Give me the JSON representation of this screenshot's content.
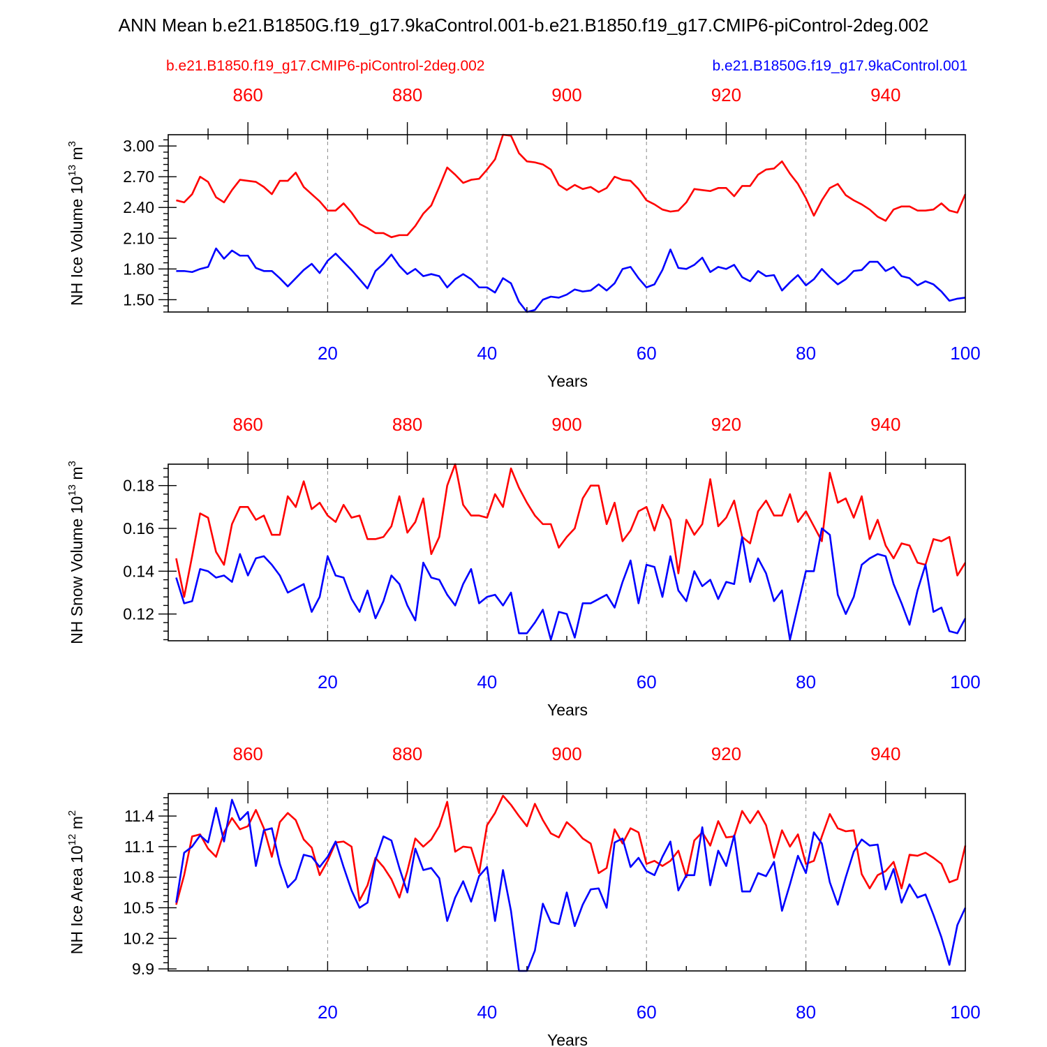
{
  "title": "ANN Mean b.e21.B1850G.f19_g17.9kaControl.001-b.e21.B1850.f19_g17.CMIP6-piControl-2deg.002",
  "legend": [
    {
      "label": "b.e21.B1850.f19_g17.CMIP6-piControl-2deg.002",
      "color": "#ff0000",
      "position": "top-left"
    },
    {
      "label": "b.e21.B1850G.f19_g17.9kaControl.001",
      "color": "#0000ff",
      "position": "top-right"
    }
  ],
  "colors": {
    "red_series": "#ff0000",
    "blue_series": "#0000ff",
    "axis": "#000000",
    "grid": "#888888"
  },
  "chart_data": [
    {
      "type": "line",
      "title": "",
      "xlabel": "Years",
      "ylabel": "NH Ice Volume 10",
      "ylabel_exp": "13",
      "ylabel_unit": " m",
      "ylabel_unit_exp": "3",
      "xlim": [
        0,
        100
      ],
      "ylim": [
        1.38,
        3.11
      ],
      "yticks": [
        1.5,
        1.8,
        2.1,
        2.4,
        2.7,
        3.0
      ],
      "ytick_labels": [
        "1.50",
        "1.80",
        "2.10",
        "2.40",
        "2.70",
        "3.00"
      ],
      "xticks_bottom": [
        20,
        40,
        60,
        80,
        100
      ],
      "xticks_bottom_labels": [
        "20",
        "40",
        "60",
        "80",
        "100"
      ],
      "xticks_top": [
        860,
        880,
        900,
        920,
        940
      ],
      "xticks_top_labels": [
        "860",
        "880",
        "900",
        "920",
        "940"
      ],
      "top_axis_offset": 850,
      "grid": "vertical dashed",
      "series": [
        {
          "name": "b.e21.B1850.f19_g17.CMIP6-piControl-2deg.002",
          "color": "#ff0000",
          "values": [
            2.47,
            2.45,
            2.53,
            2.7,
            2.65,
            2.5,
            2.45,
            2.57,
            2.67,
            2.66,
            2.65,
            2.6,
            2.53,
            2.66,
            2.66,
            2.74,
            2.6,
            2.53,
            2.46,
            2.37,
            2.37,
            2.44,
            2.35,
            2.24,
            2.2,
            2.15,
            2.15,
            2.11,
            2.13,
            2.13,
            2.22,
            2.34,
            2.42,
            2.6,
            2.79,
            2.72,
            2.64,
            2.67,
            2.68,
            2.77,
            2.87,
            3.11,
            3.1,
            2.93,
            2.85,
            2.84,
            2.82,
            2.77,
            2.62,
            2.57,
            2.62,
            2.58,
            2.6,
            2.55,
            2.59,
            2.7,
            2.67,
            2.66,
            2.58,
            2.47,
            2.43,
            2.38,
            2.36,
            2.37,
            2.45,
            2.58,
            2.57,
            2.56,
            2.59,
            2.59,
            2.51,
            2.61,
            2.61,
            2.72,
            2.77,
            2.78,
            2.85,
            2.73,
            2.63,
            2.49,
            2.32,
            2.47,
            2.59,
            2.63,
            2.52,
            2.47,
            2.43,
            2.38,
            2.31,
            2.27,
            2.38,
            2.41,
            2.41,
            2.37,
            2.37,
            2.38,
            2.44,
            2.37,
            2.35,
            2.53
          ]
        },
        {
          "name": "b.e21.B1850G.f19_g17.9kaControl.001",
          "color": "#0000ff",
          "values": [
            1.78,
            1.78,
            1.77,
            1.8,
            1.82,
            2.0,
            1.9,
            1.98,
            1.93,
            1.93,
            1.81,
            1.78,
            1.78,
            1.71,
            1.63,
            1.71,
            1.79,
            1.85,
            1.76,
            1.88,
            1.95,
            1.87,
            1.79,
            1.7,
            1.61,
            1.78,
            1.85,
            1.94,
            1.83,
            1.75,
            1.8,
            1.73,
            1.75,
            1.73,
            1.62,
            1.7,
            1.75,
            1.7,
            1.62,
            1.62,
            1.57,
            1.71,
            1.66,
            1.48,
            1.38,
            1.4,
            1.5,
            1.53,
            1.52,
            1.55,
            1.6,
            1.58,
            1.59,
            1.65,
            1.59,
            1.66,
            1.8,
            1.82,
            1.71,
            1.62,
            1.65,
            1.79,
            1.99,
            1.81,
            1.8,
            1.84,
            1.91,
            1.77,
            1.82,
            1.8,
            1.84,
            1.72,
            1.68,
            1.78,
            1.73,
            1.74,
            1.59,
            1.67,
            1.74,
            1.64,
            1.7,
            1.8,
            1.72,
            1.65,
            1.7,
            1.78,
            1.79,
            1.87,
            1.87,
            1.78,
            1.82,
            1.73,
            1.71,
            1.64,
            1.68,
            1.65,
            1.58,
            1.49,
            1.51,
            1.52
          ]
        }
      ]
    },
    {
      "type": "line",
      "title": "",
      "xlabel": "Years",
      "ylabel": "NH Snow Volume 10",
      "ylabel_exp": "13",
      "ylabel_unit": " m",
      "ylabel_unit_exp": "3",
      "xlim": [
        0,
        100
      ],
      "ylim": [
        0.1075,
        0.19
      ],
      "yticks": [
        0.12,
        0.14,
        0.16,
        0.18
      ],
      "ytick_labels": [
        "0.12",
        "0.14",
        "0.16",
        "0.18"
      ],
      "xticks_bottom": [
        20,
        40,
        60,
        80,
        100
      ],
      "xticks_bottom_labels": [
        "20",
        "40",
        "60",
        "80",
        "100"
      ],
      "xticks_top": [
        860,
        880,
        900,
        920,
        940
      ],
      "xticks_top_labels": [
        "860",
        "880",
        "900",
        "920",
        "940"
      ],
      "top_axis_offset": 850,
      "grid": "vertical dashed",
      "series": [
        {
          "name": "b.e21.B1850.f19_g17.CMIP6-piControl-2deg.002",
          "color": "#ff0000",
          "values": [
            0.146,
            0.128,
            0.147,
            0.167,
            0.165,
            0.149,
            0.143,
            0.162,
            0.17,
            0.17,
            0.164,
            0.166,
            0.157,
            0.157,
            0.175,
            0.17,
            0.182,
            0.169,
            0.172,
            0.166,
            0.163,
            0.171,
            0.165,
            0.166,
            0.155,
            0.155,
            0.156,
            0.161,
            0.175,
            0.158,
            0.163,
            0.174,
            0.148,
            0.156,
            0.18,
            0.19,
            0.171,
            0.166,
            0.166,
            0.165,
            0.176,
            0.17,
            0.188,
            0.179,
            0.172,
            0.166,
            0.162,
            0.162,
            0.151,
            0.156,
            0.16,
            0.174,
            0.18,
            0.18,
            0.162,
            0.172,
            0.154,
            0.159,
            0.168,
            0.17,
            0.159,
            0.171,
            0.164,
            0.139,
            0.164,
            0.157,
            0.162,
            0.183,
            0.161,
            0.165,
            0.173,
            0.156,
            0.153,
            0.168,
            0.173,
            0.166,
            0.166,
            0.176,
            0.163,
            0.168,
            0.161,
            0.154,
            0.186,
            0.172,
            0.174,
            0.165,
            0.175,
            0.155,
            0.164,
            0.152,
            0.146,
            0.153,
            0.152,
            0.144,
            0.143,
            0.155,
            0.154,
            0.156,
            0.138,
            0.144
          ]
        },
        {
          "name": "b.e21.B1850G.f19_g17.9kaControl.001",
          "color": "#0000ff",
          "values": [
            0.137,
            0.125,
            0.126,
            0.141,
            0.14,
            0.137,
            0.138,
            0.135,
            0.148,
            0.138,
            0.146,
            0.147,
            0.143,
            0.138,
            0.13,
            0.132,
            0.134,
            0.121,
            0.128,
            0.147,
            0.138,
            0.137,
            0.127,
            0.121,
            0.131,
            0.118,
            0.126,
            0.138,
            0.134,
            0.124,
            0.117,
            0.144,
            0.137,
            0.136,
            0.129,
            0.124,
            0.134,
            0.141,
            0.125,
            0.128,
            0.129,
            0.124,
            0.13,
            0.111,
            0.111,
            0.116,
            0.122,
            0.108,
            0.121,
            0.12,
            0.109,
            0.125,
            0.125,
            0.127,
            0.129,
            0.123,
            0.135,
            0.145,
            0.125,
            0.143,
            0.142,
            0.128,
            0.147,
            0.131,
            0.126,
            0.14,
            0.133,
            0.136,
            0.127,
            0.135,
            0.134,
            0.156,
            0.135,
            0.146,
            0.139,
            0.126,
            0.131,
            0.108,
            0.124,
            0.14,
            0.14,
            0.16,
            0.157,
            0.129,
            0.12,
            0.128,
            0.143,
            0.146,
            0.148,
            0.147,
            0.134,
            0.125,
            0.115,
            0.131,
            0.143,
            0.121,
            0.123,
            0.112,
            0.111,
            0.118
          ]
        }
      ]
    },
    {
      "type": "line",
      "title": "",
      "xlabel": "Years",
      "ylabel": "NH Ice Area 10",
      "ylabel_exp": "12",
      "ylabel_unit": " m",
      "ylabel_unit_exp": "2",
      "xlim": [
        0,
        100
      ],
      "ylim": [
        9.88,
        11.62
      ],
      "yticks": [
        9.9,
        10.2,
        10.5,
        10.8,
        11.1,
        11.4
      ],
      "ytick_labels": [
        "9.9",
        "10.2",
        "10.5",
        "10.8",
        "11.1",
        "11.4"
      ],
      "xticks_bottom": [
        20,
        40,
        60,
        80,
        100
      ],
      "xticks_bottom_labels": [
        "20",
        "40",
        "60",
        "80",
        "100"
      ],
      "xticks_top": [
        860,
        880,
        900,
        920,
        940
      ],
      "xticks_top_labels": [
        "860",
        "880",
        "900",
        "920",
        "940"
      ],
      "top_axis_offset": 850,
      "grid": "vertical dashed",
      "series": [
        {
          "name": "b.e21.B1850.f19_g17.CMIP6-piControl-2deg.002",
          "color": "#ff0000",
          "values": [
            10.53,
            10.82,
            11.2,
            11.22,
            11.08,
            11.0,
            11.24,
            11.38,
            11.27,
            11.3,
            11.46,
            11.28,
            11.0,
            11.34,
            11.43,
            11.36,
            11.17,
            11.09,
            10.82,
            10.96,
            11.14,
            11.15,
            11.1,
            10.57,
            10.72,
            10.99,
            10.9,
            10.78,
            10.6,
            10.86,
            11.18,
            11.1,
            11.17,
            11.3,
            11.54,
            11.05,
            11.1,
            11.09,
            10.84,
            11.31,
            11.43,
            11.6,
            11.51,
            11.4,
            11.3,
            11.52,
            11.36,
            11.23,
            11.19,
            11.34,
            11.27,
            11.18,
            11.13,
            10.84,
            10.89,
            11.27,
            11.13,
            11.28,
            11.24,
            10.93,
            10.96,
            10.91,
            10.96,
            11.06,
            10.8,
            11.16,
            11.24,
            11.11,
            11.35,
            11.19,
            11.2,
            11.45,
            11.33,
            11.45,
            11.31,
            10.99,
            11.26,
            11.1,
            11.22,
            10.93,
            10.96,
            11.2,
            11.42,
            11.28,
            11.25,
            11.26,
            10.83,
            10.69,
            10.82,
            10.86,
            10.95,
            10.69,
            11.02,
            11.01,
            11.04,
            10.99,
            10.93,
            10.75,
            10.78,
            11.11
          ]
        },
        {
          "name": "b.e21.B1850G.f19_g17.9kaControl.001",
          "color": "#0000ff",
          "values": [
            10.55,
            11.04,
            11.1,
            11.21,
            11.14,
            11.48,
            11.15,
            11.56,
            11.36,
            11.44,
            10.91,
            11.26,
            11.28,
            10.93,
            10.7,
            10.78,
            11.02,
            11.0,
            10.9,
            11.0,
            11.15,
            10.9,
            10.67,
            10.5,
            10.55,
            10.97,
            11.2,
            11.16,
            10.89,
            10.65,
            11.08,
            10.87,
            10.89,
            10.79,
            10.37,
            10.6,
            10.76,
            10.56,
            10.81,
            10.9,
            10.37,
            10.87,
            10.47,
            9.88,
            9.88,
            10.08,
            10.54,
            10.36,
            10.34,
            10.65,
            10.32,
            10.53,
            10.68,
            10.69,
            10.5,
            11.14,
            11.18,
            10.9,
            10.99,
            10.86,
            10.82,
            11.0,
            11.15,
            10.67,
            10.82,
            10.82,
            11.29,
            10.72,
            11.06,
            10.91,
            11.21,
            10.66,
            10.66,
            10.84,
            10.81,
            10.95,
            10.47,
            10.73,
            11.01,
            10.84,
            11.24,
            11.13,
            10.75,
            10.53,
            10.8,
            11.05,
            11.17,
            11.11,
            11.12,
            10.68,
            10.88,
            10.55,
            10.73,
            10.6,
            10.63,
            10.43,
            10.21,
            9.94,
            10.33,
            10.5
          ]
        }
      ]
    }
  ]
}
